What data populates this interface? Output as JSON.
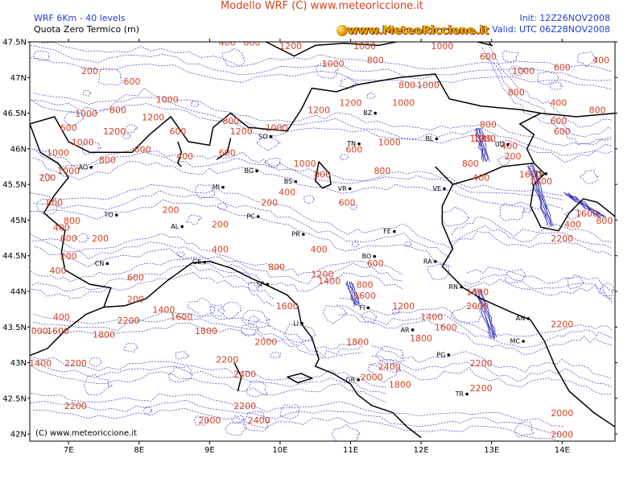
{
  "header": {
    "model_line": "WRF 6Km - 40 levels",
    "variable": "Quota Zero Termico (m)",
    "title": "Modello WRF (C) www.meteoriccione.it",
    "init": "Init: 12Z26NOV2008",
    "valid": "Valid: UTC 06Z28NOV2008",
    "logo": "www.MeteoRiccione.it"
  },
  "map": {
    "copyright": "(C) www.meteoriccione.it",
    "lat_labels": [
      "47.5N",
      "47N",
      "46.5N",
      "46N",
      "45.5N",
      "45N",
      "44.5N",
      "44N",
      "43.5N",
      "43N",
      "42.5N",
      "42N"
    ],
    "lon_labels": [
      "7E",
      "8E",
      "9E",
      "10E",
      "11E",
      "12E",
      "13E",
      "14E"
    ],
    "cities": [
      {
        "code": "SO",
        "lon": 9.87,
        "lat": 46.17
      },
      {
        "code": "TN",
        "lon": 11.12,
        "lat": 46.07
      },
      {
        "code": "BZ",
        "lon": 11.35,
        "lat": 46.5
      },
      {
        "code": "BL",
        "lon": 12.22,
        "lat": 46.14
      },
      {
        "code": "UD",
        "lon": 13.23,
        "lat": 46.06
      },
      {
        "code": "BG",
        "lon": 9.67,
        "lat": 45.69
      },
      {
        "code": "BS",
        "lon": 10.22,
        "lat": 45.54
      },
      {
        "code": "MI",
        "lon": 9.19,
        "lat": 45.46
      },
      {
        "code": "VR",
        "lon": 10.99,
        "lat": 45.44
      },
      {
        "code": "VE",
        "lon": 12.33,
        "lat": 45.44
      },
      {
        "code": "TS",
        "lon": 13.77,
        "lat": 45.65
      },
      {
        "code": "AO",
        "lon": 7.32,
        "lat": 45.74
      },
      {
        "code": "TO",
        "lon": 7.68,
        "lat": 45.07
      },
      {
        "code": "AL",
        "lon": 8.61,
        "lat": 44.91
      },
      {
        "code": "PC",
        "lon": 9.69,
        "lat": 45.05
      },
      {
        "code": "PR",
        "lon": 10.33,
        "lat": 44.8
      },
      {
        "code": "FE",
        "lon": 11.62,
        "lat": 44.84
      },
      {
        "code": "GE",
        "lon": 8.93,
        "lat": 44.41
      },
      {
        "code": "CN",
        "lon": 7.55,
        "lat": 44.39
      },
      {
        "code": "BO",
        "lon": 11.34,
        "lat": 44.49
      },
      {
        "code": "RA",
        "lon": 12.2,
        "lat": 44.42
      },
      {
        "code": "SP",
        "lon": 9.82,
        "lat": 44.1
      },
      {
        "code": "RN",
        "lon": 12.57,
        "lat": 44.06
      },
      {
        "code": "FI",
        "lon": 11.25,
        "lat": 43.77
      },
      {
        "code": "LI",
        "lon": 10.31,
        "lat": 43.55
      },
      {
        "code": "AN",
        "lon": 13.52,
        "lat": 43.62
      },
      {
        "code": "AR",
        "lon": 11.88,
        "lat": 43.46
      },
      {
        "code": "MC",
        "lon": 13.45,
        "lat": 43.3
      },
      {
        "code": "PG",
        "lon": 12.39,
        "lat": 43.11
      },
      {
        "code": "GR",
        "lon": 11.11,
        "lat": 42.76
      },
      {
        "code": "TR",
        "lon": 12.65,
        "lat": 42.56
      }
    ],
    "contour_labels": [
      {
        "t": "200",
        "lon": 7.3,
        "lat": 47.05
      },
      {
        "t": "600",
        "lon": 7.9,
        "lat": 46.9
      },
      {
        "t": "200",
        "lon": 8.95,
        "lat": 47.5
      },
      {
        "t": "400",
        "lon": 9.25,
        "lat": 47.45
      },
      {
        "t": "600",
        "lon": 9.6,
        "lat": 47.45
      },
      {
        "t": "1200",
        "lon": 10.15,
        "lat": 47.4
      },
      {
        "t": "1000",
        "lon": 10.75,
        "lat": 47.15
      },
      {
        "t": "800",
        "lon": 11.35,
        "lat": 47.2
      },
      {
        "t": "1000",
        "lon": 11.2,
        "lat": 47.4
      },
      {
        "t": "1000",
        "lon": 12.3,
        "lat": 47.4
      },
      {
        "t": "600",
        "lon": 12.95,
        "lat": 47.25
      },
      {
        "t": "800",
        "lon": 13.35,
        "lat": 46.75
      },
      {
        "t": "1000",
        "lon": 13.45,
        "lat": 47.05
      },
      {
        "t": "600",
        "lon": 14.0,
        "lat": 47.1
      },
      {
        "t": "400",
        "lon": 14.55,
        "lat": 47.2
      },
      {
        "t": "400",
        "lon": 13.95,
        "lat": 46.6
      },
      {
        "t": "600",
        "lon": 14.0,
        "lat": 46.2
      },
      {
        "t": "800",
        "lon": 14.5,
        "lat": 46.5
      },
      {
        "t": "1000",
        "lon": 12.1,
        "lat": 46.85
      },
      {
        "t": "800",
        "lon": 11.8,
        "lat": 46.85
      },
      {
        "t": "1000",
        "lon": 11.75,
        "lat": 46.6
      },
      {
        "t": "1200",
        "lon": 11.0,
        "lat": 46.6
      },
      {
        "t": "1200",
        "lon": 10.55,
        "lat": 46.5
      },
      {
        "t": "1000",
        "lon": 8.4,
        "lat": 46.65
      },
      {
        "t": "800",
        "lon": 7.7,
        "lat": 46.5
      },
      {
        "t": "1000",
        "lon": 7.25,
        "lat": 46.45
      },
      {
        "t": "1200",
        "lon": 7.65,
        "lat": 46.2
      },
      {
        "t": "1200",
        "lon": 8.2,
        "lat": 46.4
      },
      {
        "t": "600",
        "lon": 8.55,
        "lat": 46.2
      },
      {
        "t": "1000",
        "lon": 7.2,
        "lat": 46.05
      },
      {
        "t": "600",
        "lon": 7.0,
        "lat": 46.25
      },
      {
        "t": "1000",
        "lon": 6.85,
        "lat": 45.9
      },
      {
        "t": "600",
        "lon": 8.05,
        "lat": 45.95
      },
      {
        "t": "400",
        "lon": 8.65,
        "lat": 45.85
      },
      {
        "t": "800",
        "lon": 7.55,
        "lat": 45.8
      },
      {
        "t": "1000",
        "lon": 7.0,
        "lat": 45.65
      },
      {
        "t": "200",
        "lon": 6.7,
        "lat": 45.55
      },
      {
        "t": "800",
        "lon": 9.3,
        "lat": 46.35
      },
      {
        "t": "1200",
        "lon": 9.45,
        "lat": 46.2
      },
      {
        "t": "1000",
        "lon": 9.95,
        "lat": 46.25
      },
      {
        "t": "600",
        "lon": 9.25,
        "lat": 45.9
      },
      {
        "t": "1000",
        "lon": 10.35,
        "lat": 45.75
      },
      {
        "t": "800",
        "lon": 10.6,
        "lat": 45.6
      },
      {
        "t": "600",
        "lon": 11.05,
        "lat": 45.95
      },
      {
        "t": "1000",
        "lon": 11.55,
        "lat": 46.05
      },
      {
        "t": "800",
        "lon": 11.45,
        "lat": 45.65
      },
      {
        "t": "600",
        "lon": 10.95,
        "lat": 45.2
      },
      {
        "t": "400",
        "lon": 10.1,
        "lat": 45.35
      },
      {
        "t": "200",
        "lon": 9.85,
        "lat": 45.2
      },
      {
        "t": "800",
        "lon": 6.8,
        "lat": 45.2
      },
      {
        "t": "800",
        "lon": 7.05,
        "lat": 44.95
      },
      {
        "t": "400",
        "lon": 6.9,
        "lat": 44.85
      },
      {
        "t": "600",
        "lon": 7.0,
        "lat": 44.7
      },
      {
        "t": "200",
        "lon": 7.45,
        "lat": 44.7
      },
      {
        "t": "200",
        "lon": 8.45,
        "lat": 45.1
      },
      {
        "t": "200",
        "lon": 9.15,
        "lat": 44.9
      },
      {
        "t": "400",
        "lon": 9.15,
        "lat": 44.55
      },
      {
        "t": "200",
        "lon": 7.0,
        "lat": 44.45
      },
      {
        "t": "400",
        "lon": 6.85,
        "lat": 44.25
      },
      {
        "t": "600",
        "lon": 7.95,
        "lat": 44.15
      },
      {
        "t": "200",
        "lon": 7.95,
        "lat": 43.85
      },
      {
        "t": "400",
        "lon": 6.9,
        "lat": 43.6
      },
      {
        "t": "2000",
        "lon": 6.55,
        "lat": 43.4
      },
      {
        "t": "1600",
        "lon": 6.85,
        "lat": 43.4
      },
      {
        "t": "1800",
        "lon": 7.5,
        "lat": 43.35
      },
      {
        "t": "2200",
        "lon": 7.85,
        "lat": 43.55
      },
      {
        "t": "1400",
        "lon": 8.35,
        "lat": 43.7
      },
      {
        "t": "1600",
        "lon": 8.6,
        "lat": 43.6
      },
      {
        "t": "1800",
        "lon": 8.95,
        "lat": 43.4
      },
      {
        "t": "1400",
        "lon": 6.6,
        "lat": 42.95
      },
      {
        "t": "2200",
        "lon": 7.1,
        "lat": 42.95
      },
      {
        "t": "2200",
        "lon": 7.1,
        "lat": 42.35
      },
      {
        "t": "2000",
        "lon": 9.0,
        "lat": 42.15
      },
      {
        "t": "2200",
        "lon": 9.5,
        "lat": 42.35
      },
      {
        "t": "2400",
        "lon": 9.7,
        "lat": 42.15
      },
      {
        "t": "2400",
        "lon": 9.5,
        "lat": 42.8
      },
      {
        "t": "2200",
        "lon": 9.25,
        "lat": 43.0
      },
      {
        "t": "2000",
        "lon": 9.8,
        "lat": 43.25
      },
      {
        "t": "1600",
        "lon": 10.1,
        "lat": 43.75
      },
      {
        "t": "1400",
        "lon": 10.7,
        "lat": 44.1
      },
      {
        "t": "1200",
        "lon": 10.6,
        "lat": 44.2
      },
      {
        "t": "800",
        "lon": 9.95,
        "lat": 44.3
      },
      {
        "t": "400",
        "lon": 10.55,
        "lat": 44.55
      },
      {
        "t": "600",
        "lon": 11.35,
        "lat": 44.35
      },
      {
        "t": "800",
        "lon": 11.2,
        "lat": 44.05
      },
      {
        "t": "1600",
        "lon": 11.2,
        "lat": 43.9
      },
      {
        "t": "1200",
        "lon": 11.75,
        "lat": 43.75
      },
      {
        "t": "1400",
        "lon": 12.15,
        "lat": 43.6
      },
      {
        "t": "1600",
        "lon": 12.35,
        "lat": 43.45
      },
      {
        "t": "1800",
        "lon": 12.0,
        "lat": 43.3
      },
      {
        "t": "1800",
        "lon": 11.1,
        "lat": 43.25
      },
      {
        "t": "2400",
        "lon": 11.55,
        "lat": 42.9
      },
      {
        "t": "2000",
        "lon": 11.3,
        "lat": 42.75
      },
      {
        "t": "1800",
        "lon": 11.7,
        "lat": 42.65
      },
      {
        "t": "2000",
        "lon": 12.8,
        "lat": 43.75
      },
      {
        "t": "1600",
        "lon": 12.8,
        "lat": 43.95
      },
      {
        "t": "2200",
        "lon": 12.85,
        "lat": 42.95
      },
      {
        "t": "2200",
        "lon": 12.85,
        "lat": 42.6
      },
      {
        "t": "2200",
        "lon": 14.0,
        "lat": 43.5
      },
      {
        "t": "2000",
        "lon": 14.0,
        "lat": 42.25
      },
      {
        "t": "2000",
        "lon": 14.0,
        "lat": 41.95
      },
      {
        "t": "2200",
        "lon": 14.0,
        "lat": 44.7
      },
      {
        "t": "1600",
        "lon": 13.7,
        "lat": 45.5
      },
      {
        "t": "1600",
        "lon": 14.35,
        "lat": 45.05
      },
      {
        "t": "400",
        "lon": 14.15,
        "lat": 44.9
      },
      {
        "t": "800",
        "lon": 14.6,
        "lat": 44.95
      },
      {
        "t": "200",
        "lon": 13.3,
        "lat": 45.85
      },
      {
        "t": "400",
        "lon": 12.85,
        "lat": 45.55
      },
      {
        "t": "800",
        "lon": 12.7,
        "lat": 45.75
      },
      {
        "t": "1600",
        "lon": 13.55,
        "lat": 45.6
      },
      {
        "t": "1000",
        "lon": 12.9,
        "lat": 46.1
      },
      {
        "t": "400",
        "lon": 13.25,
        "lat": 46.0
      },
      {
        "t": "600",
        "lon": 13.95,
        "lat": 46.35
      },
      {
        "t": "800",
        "lon": 12.95,
        "lat": 46.3
      },
      {
        "t": "1000",
        "lon": 12.85,
        "lat": 46.1
      }
    ]
  }
}
